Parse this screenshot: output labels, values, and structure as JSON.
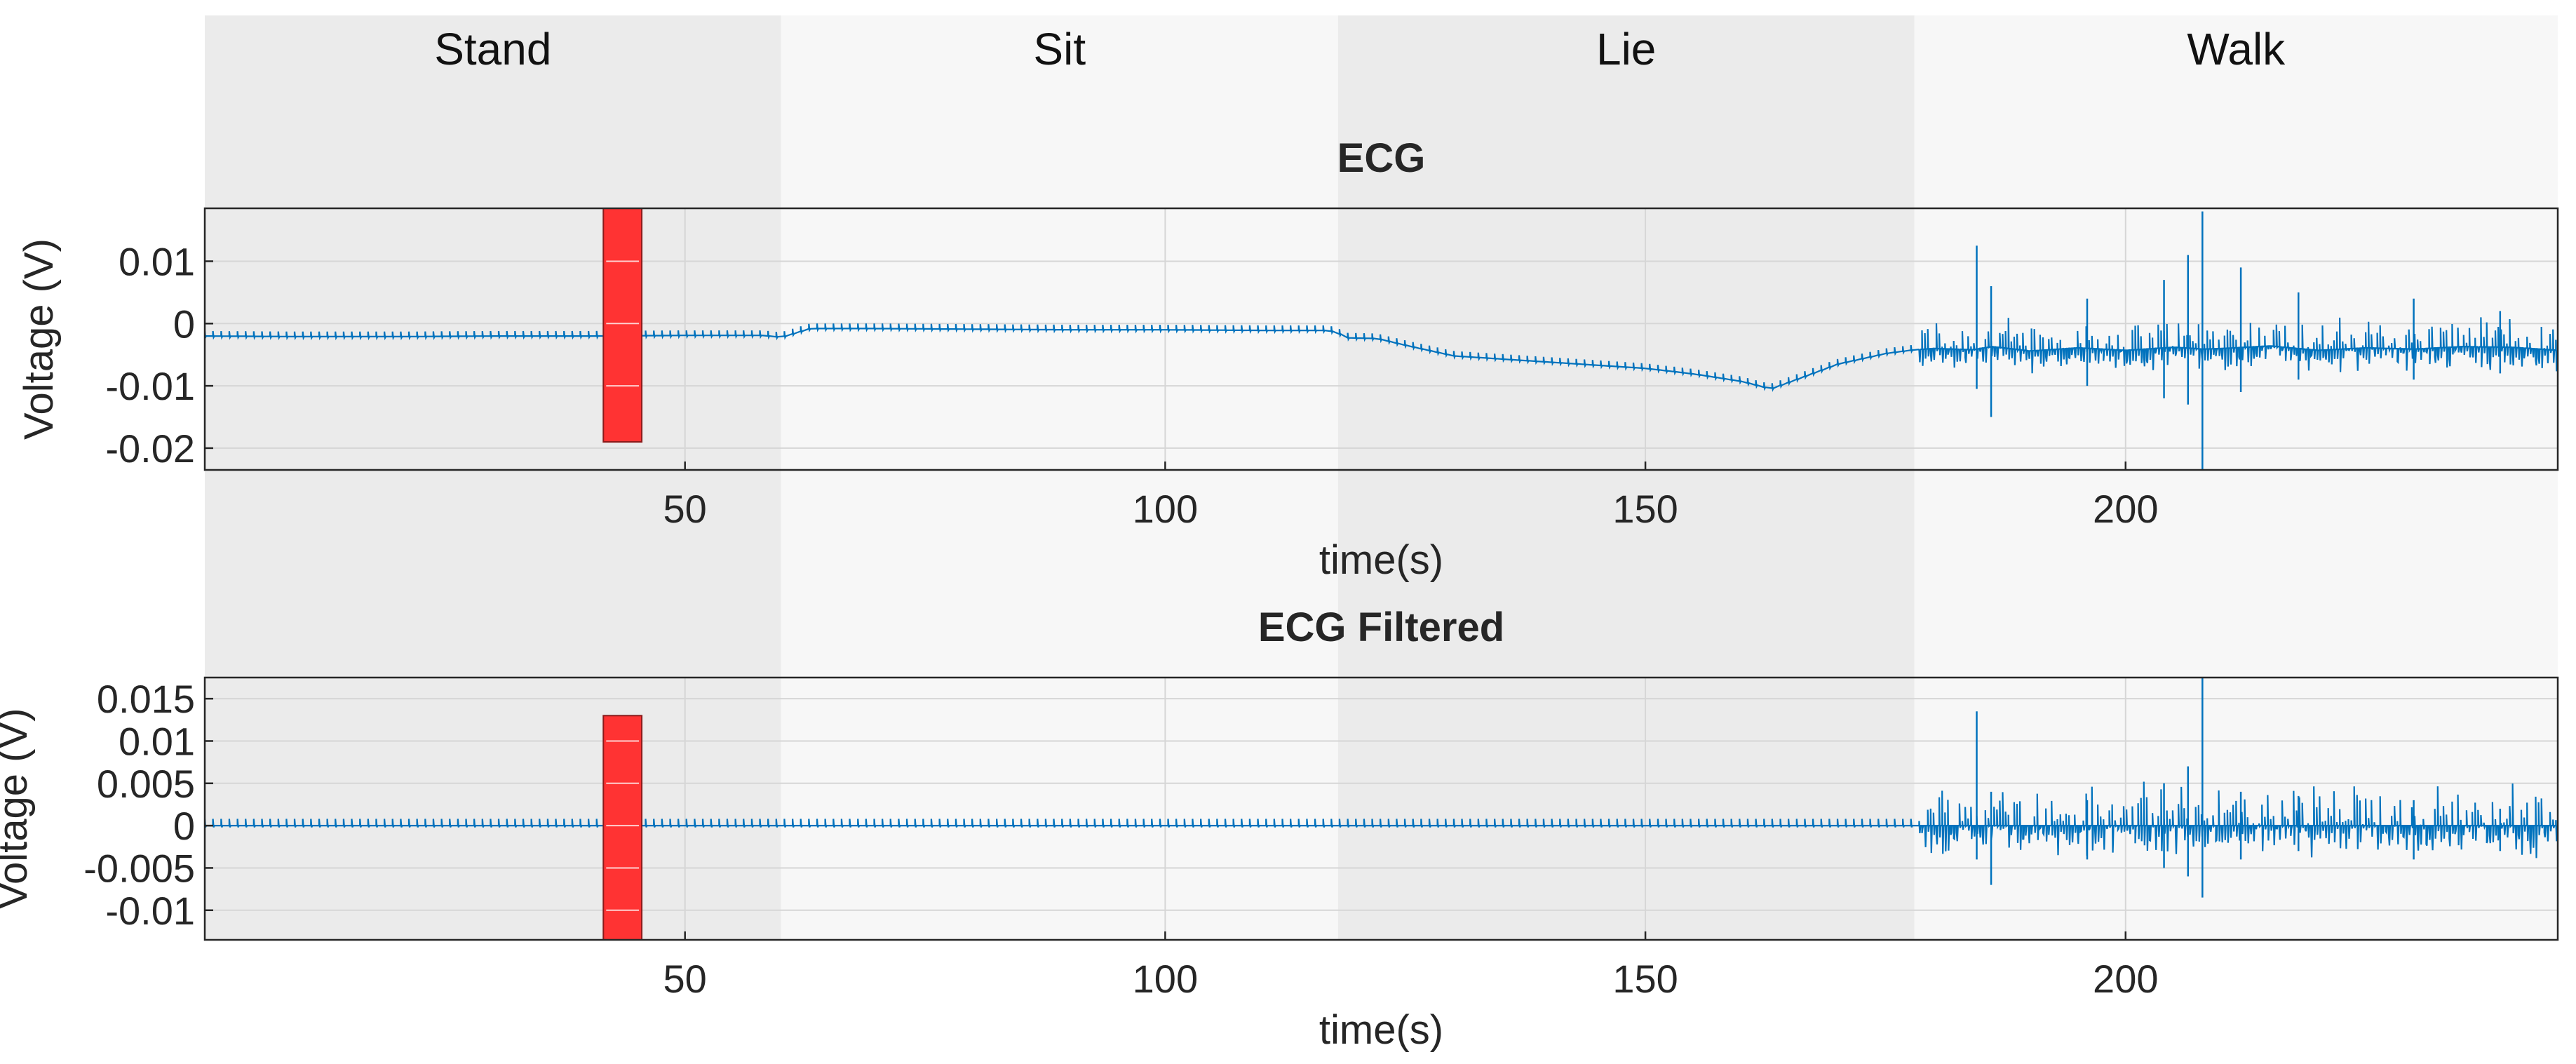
{
  "phases": [
    {
      "label": "Stand",
      "start": 0,
      "end": 60,
      "color": "#ebebeb"
    },
    {
      "label": "Sit",
      "start": 60,
      "end": 118,
      "color": "#f7f7f7"
    },
    {
      "label": "Lie",
      "start": 118,
      "end": 178,
      "color": "#ebebeb"
    },
    {
      "label": "Walk",
      "start": 178,
      "end": 245,
      "color": "#f7f7f7"
    }
  ],
  "colors": {
    "signal": "#0072bd",
    "marker": "#ff3333",
    "grid": "#d6d6d6",
    "axes": "#262626"
  },
  "chart_data": [
    {
      "type": "line",
      "title": "ECG",
      "xlabel": "time(s)",
      "ylabel": "Voltage (V)",
      "xlim": [
        0,
        245
      ],
      "ylim": [
        -0.0235,
        0.0185
      ],
      "xticks": [
        50,
        100,
        150,
        200
      ],
      "xtick_labels": [
        "50",
        "100",
        "150",
        "200"
      ],
      "yticks": [
        0.01,
        0,
        -0.01,
        -0.02
      ],
      "ytick_labels": [
        "0.01",
        "0",
        "-0.01",
        "-0.02"
      ],
      "grid": true,
      "marker": {
        "x": [
          41.5,
          45.5
        ],
        "y": [
          -0.019,
          0.0185
        ]
      },
      "series": [
        {
          "x": [
            0,
            10,
            20,
            30,
            40,
            50,
            58,
            60,
            63,
            70,
            80,
            90,
            100,
            110,
            117,
            118,
            119,
            122,
            125,
            130,
            140,
            150,
            155,
            160,
            163,
            166,
            170,
            175,
            178,
            180,
            184,
            186,
            190,
            195,
            200,
            205,
            208,
            210,
            215,
            220,
            225,
            230,
            235,
            240,
            245
          ],
          "y": [
            -0.002,
            -0.0021,
            -0.0021,
            -0.002,
            -0.002,
            -0.0019,
            -0.0019,
            -0.0022,
            -0.0008,
            -0.0008,
            -0.0009,
            -0.001,
            -0.001,
            -0.0011,
            -0.0011,
            -0.0016,
            -0.0023,
            -0.0024,
            -0.0035,
            -0.0052,
            -0.0062,
            -0.0072,
            -0.0081,
            -0.0093,
            -0.0105,
            -0.0088,
            -0.0065,
            -0.0048,
            -0.0042,
            -0.004,
            -0.0042,
            -0.0037,
            -0.0044,
            -0.0039,
            -0.0043,
            -0.0038,
            -0.0041,
            -0.004,
            -0.0036,
            -0.0043,
            -0.0039,
            -0.0041,
            -0.0037,
            -0.0038,
            -0.0043
          ],
          "spikes": [
            {
              "x": 184.5,
              "ymin": -0.0105,
              "ymax": 0.0125
            },
            {
              "x": 186,
              "ymin": -0.015,
              "ymax": 0.006
            },
            {
              "x": 196,
              "ymin": -0.01,
              "ymax": 0.004
            },
            {
              "x": 204,
              "ymin": -0.012,
              "ymax": 0.007
            },
            {
              "x": 206.5,
              "ymin": -0.013,
              "ymax": 0.011
            },
            {
              "x": 208,
              "ymin": -0.024,
              "ymax": 0.018
            },
            {
              "x": 212,
              "ymin": -0.011,
              "ymax": 0.009
            },
            {
              "x": 218,
              "ymin": -0.009,
              "ymax": 0.005
            },
            {
              "x": 230,
              "ymin": -0.009,
              "ymax": 0.004
            },
            {
              "x": 239,
              "ymin": -0.008,
              "ymax": 0.002
            }
          ]
        }
      ]
    },
    {
      "type": "line",
      "title": "ECG Filtered",
      "xlabel": "time(s)",
      "ylabel": "Voltage (V)",
      "xlim": [
        0,
        245
      ],
      "ylim": [
        -0.0135,
        0.0175
      ],
      "xticks": [
        50,
        100,
        150,
        200
      ],
      "xtick_labels": [
        "50",
        "100",
        "150",
        "200"
      ],
      "yticks": [
        0.015,
        0.01,
        0.005,
        0,
        -0.005,
        -0.01
      ],
      "ytick_labels": [
        "0.015",
        "0.01",
        "0.005",
        "0",
        "-0.005",
        "-0.01"
      ],
      "grid": true,
      "marker": {
        "x": [
          41.5,
          45.5
        ],
        "y": [
          -0.0135,
          0.013
        ]
      },
      "series": [
        {
          "x": [
            0,
            50,
            100,
            150,
            178,
            180,
            190,
            200,
            210,
            220,
            230,
            240,
            245
          ],
          "y": [
            0,
            0,
            0,
            0,
            0,
            0,
            0,
            0,
            0,
            0,
            0,
            0,
            0
          ],
          "spikes": [
            {
              "x": 184.5,
              "ymin": -0.004,
              "ymax": 0.0135
            },
            {
              "x": 186,
              "ymin": -0.007,
              "ymax": 0.004
            },
            {
              "x": 196,
              "ymin": -0.004,
              "ymax": 0.003
            },
            {
              "x": 204,
              "ymin": -0.005,
              "ymax": 0.005
            },
            {
              "x": 206.5,
              "ymin": -0.006,
              "ymax": 0.007
            },
            {
              "x": 208,
              "ymin": -0.0085,
              "ymax": 0.0175
            },
            {
              "x": 212,
              "ymin": -0.004,
              "ymax": 0.004
            },
            {
              "x": 218,
              "ymin": -0.003,
              "ymax": 0.0035
            },
            {
              "x": 230,
              "ymin": -0.004,
              "ymax": 0.003
            },
            {
              "x": 239,
              "ymin": -0.003,
              "ymax": 0.002
            }
          ]
        }
      ]
    }
  ]
}
